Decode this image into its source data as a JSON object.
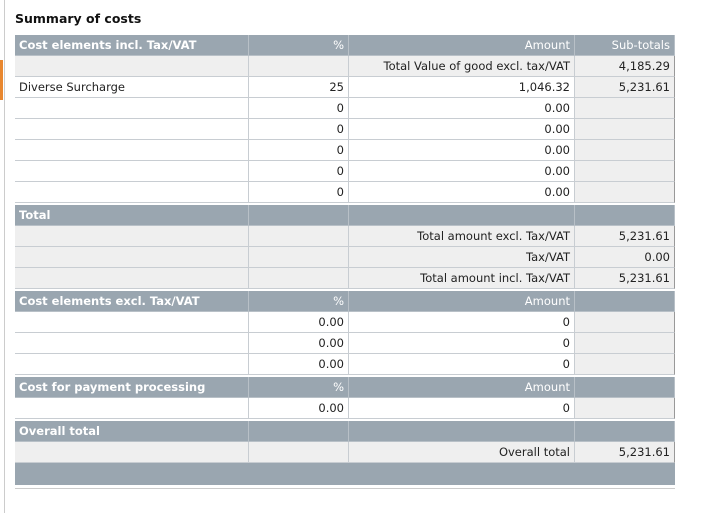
{
  "title": "Summary of costs",
  "sections": [
    {
      "header": [
        "Cost elements incl. Tax/VAT",
        "%",
        "Amount",
        "Sub-totals"
      ],
      "rows": [
        [
          null,
          null,
          "Total Value of good excl. tax/VAT",
          "4,185.29"
        ],
        [
          "Diverse Surcharge",
          "25",
          "1,046.32",
          "5,231.61"
        ],
        [
          null,
          "0",
          "0.00",
          null
        ],
        [
          null,
          "0",
          "0.00",
          null
        ],
        [
          null,
          "0",
          "0.00",
          null
        ],
        [
          null,
          "0",
          "0.00",
          null
        ],
        [
          null,
          "0",
          "0.00",
          null
        ]
      ]
    },
    {
      "header": [
        "Total",
        null,
        null,
        null
      ],
      "rows": [
        [
          null,
          null,
          "Total amount excl. Tax/VAT",
          "5,231.61"
        ],
        [
          null,
          null,
          "Tax/VAT",
          "0.00"
        ],
        [
          null,
          null,
          "Total amount incl. Tax/VAT",
          "5,231.61"
        ]
      ]
    },
    {
      "header": [
        "Cost elements excl. Tax/VAT",
        "%",
        "Amount",
        null
      ],
      "rows": [
        [
          null,
          "0.00",
          "0",
          null
        ],
        [
          null,
          "0.00",
          "0",
          null
        ],
        [
          null,
          "0.00",
          "0",
          null
        ]
      ]
    },
    {
      "header": [
        "Cost for payment processing",
        "%",
        "Amount",
        null
      ],
      "rows": [
        [
          null,
          "0.00",
          "0",
          null
        ]
      ]
    },
    {
      "header": [
        "Overall total",
        null,
        null,
        null
      ],
      "rows": [
        [
          null,
          null,
          "Overall total",
          "5,231.61"
        ]
      ]
    }
  ]
}
